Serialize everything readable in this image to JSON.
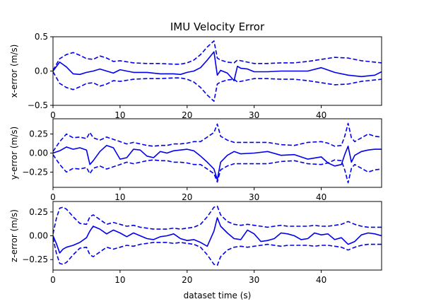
{
  "chart_data": [
    {
      "type": "line",
      "title": "IMU Velocity Error",
      "xlabel": "",
      "ylabel": "x-error (m/s)",
      "xlim": [
        0,
        49
      ],
      "ylim": [
        -0.5,
        0.5
      ],
      "xticks": [
        0,
        10,
        20,
        30,
        40
      ],
      "yticks": [
        -0.5,
        0.0,
        0.5
      ],
      "ytick_labels": [
        "−0.5",
        "0.0",
        "0.5"
      ],
      "color": "#0000ee",
      "series": [
        {
          "style": "solid",
          "x": [
            0,
            1,
            2,
            3,
            4,
            5,
            6,
            7,
            8,
            9,
            10,
            12,
            14,
            16,
            18,
            19,
            20,
            21,
            22,
            23,
            24,
            24.5,
            25,
            26,
            27,
            27.5,
            28,
            29,
            30,
            32,
            34,
            36,
            38,
            40,
            42,
            44,
            46,
            48,
            49
          ],
          "y": [
            0,
            0.13,
            0.06,
            -0.04,
            -0.05,
            -0.02,
            0.0,
            0.03,
            0.0,
            -0.03,
            0.02,
            -0.02,
            -0.02,
            -0.04,
            -0.04,
            -0.05,
            -0.02,
            0.0,
            0.05,
            0.16,
            0.28,
            -0.06,
            0.01,
            -0.03,
            -0.14,
            0.07,
            0.04,
            0.03,
            -0.01,
            -0.01,
            0.0,
            0.0,
            0.0,
            0.05,
            -0.02,
            -0.06,
            -0.08,
            -0.06,
            -0.01
          ]
        },
        {
          "style": "dashed",
          "x": [
            0,
            1,
            2,
            3,
            4,
            5,
            6,
            7,
            8,
            9,
            10,
            12,
            14,
            16,
            18,
            19,
            20,
            21,
            22,
            23,
            24,
            24.5,
            25,
            26,
            27,
            27.5,
            28,
            29,
            30,
            32,
            34,
            36,
            38,
            40,
            42,
            44,
            46,
            48,
            49
          ],
          "y": [
            0.01,
            0.18,
            0.24,
            0.27,
            0.23,
            0.18,
            0.17,
            0.22,
            0.19,
            0.14,
            0.15,
            0.12,
            0.11,
            0.11,
            0.1,
            0.1,
            0.12,
            0.16,
            0.24,
            0.35,
            0.44,
            0.19,
            0.16,
            0.13,
            0.12,
            0.16,
            0.15,
            0.13,
            0.11,
            0.11,
            0.12,
            0.12,
            0.14,
            0.17,
            0.2,
            0.19,
            0.15,
            0.13,
            0.12
          ]
        },
        {
          "style": "dashed",
          "x": [
            0,
            1,
            2,
            3,
            4,
            5,
            6,
            7,
            8,
            9,
            10,
            12,
            14,
            16,
            18,
            19,
            20,
            21,
            22,
            23,
            24,
            24.5,
            25,
            26,
            27,
            27.5,
            28,
            29,
            30,
            32,
            34,
            36,
            38,
            40,
            42,
            44,
            46,
            48,
            49
          ],
          "y": [
            -0.01,
            -0.18,
            -0.24,
            -0.27,
            -0.23,
            -0.18,
            -0.17,
            -0.22,
            -0.19,
            -0.14,
            -0.15,
            -0.12,
            -0.11,
            -0.11,
            -0.1,
            -0.1,
            -0.12,
            -0.16,
            -0.24,
            -0.35,
            -0.44,
            -0.19,
            -0.16,
            -0.13,
            -0.12,
            -0.16,
            -0.15,
            -0.13,
            -0.11,
            -0.11,
            -0.12,
            -0.12,
            -0.14,
            -0.17,
            -0.2,
            -0.19,
            -0.15,
            -0.13,
            -0.12
          ]
        }
      ]
    },
    {
      "type": "line",
      "title": "",
      "xlabel": "",
      "ylabel": "y-error (m/s)",
      "xlim": [
        0,
        49
      ],
      "ylim": [
        -0.45,
        0.45
      ],
      "xticks": [
        0,
        10,
        20,
        30,
        40
      ],
      "yticks": [
        -0.25,
        0.0,
        0.25
      ],
      "ytick_labels": [
        "−0.25",
        "0.00",
        "0.25"
      ],
      "color": "#0000ee",
      "series": [
        {
          "style": "solid",
          "x": [
            0,
            1,
            2,
            3,
            4,
            5,
            5.5,
            6,
            7,
            8,
            9,
            10,
            11,
            12,
            13,
            14,
            15,
            16,
            17,
            18,
            19,
            20,
            21,
            22,
            23,
            24,
            24.5,
            25,
            26,
            27,
            28,
            30,
            32,
            34,
            36,
            38,
            40,
            41,
            42,
            43,
            43.5,
            44,
            44.5,
            45,
            46,
            47,
            48,
            49
          ],
          "y": [
            0,
            0.03,
            0.08,
            0.05,
            0.07,
            0.04,
            -0.15,
            -0.1,
            0.02,
            0.1,
            0.07,
            -0.08,
            -0.06,
            0.05,
            0.04,
            -0.04,
            -0.06,
            0.02,
            0.0,
            0.03,
            0.04,
            0.05,
            0.03,
            -0.04,
            -0.12,
            -0.21,
            -0.35,
            -0.12,
            -0.03,
            0.02,
            -0.01,
            0.0,
            0.02,
            -0.03,
            -0.02,
            -0.08,
            -0.05,
            -0.13,
            -0.17,
            -0.15,
            -0.02,
            0.09,
            -0.12,
            -0.03,
            0.02,
            0.04,
            0.05,
            0.05
          ]
        },
        {
          "style": "dashed",
          "x": [
            0,
            1,
            2,
            3,
            4,
            5,
            5.5,
            6,
            7,
            8,
            9,
            10,
            11,
            12,
            13,
            14,
            15,
            16,
            17,
            18,
            19,
            20,
            21,
            22,
            23,
            24,
            24.5,
            25,
            26,
            27,
            28,
            30,
            32,
            34,
            36,
            38,
            40,
            41,
            42,
            43,
            43.5,
            44,
            44.5,
            45,
            46,
            47,
            48,
            49
          ],
          "y": [
            0.02,
            0.15,
            0.25,
            0.2,
            0.21,
            0.19,
            0.27,
            0.2,
            0.17,
            0.21,
            0.18,
            0.15,
            0.12,
            0.14,
            0.12,
            0.1,
            0.09,
            0.1,
            0.1,
            0.12,
            0.12,
            0.13,
            0.15,
            0.15,
            0.21,
            0.27,
            0.38,
            0.22,
            0.17,
            0.14,
            0.14,
            0.14,
            0.14,
            0.11,
            0.1,
            0.14,
            0.15,
            0.13,
            0.09,
            0.1,
            0.22,
            0.39,
            0.2,
            0.15,
            0.2,
            0.25,
            0.22,
            0.21
          ]
        },
        {
          "style": "dashed",
          "x": [
            0,
            1,
            2,
            3,
            4,
            5,
            5.5,
            6,
            7,
            8,
            9,
            10,
            11,
            12,
            13,
            14,
            15,
            16,
            17,
            18,
            19,
            20,
            21,
            22,
            23,
            24,
            24.5,
            25,
            26,
            27,
            28,
            30,
            32,
            34,
            36,
            38,
            40,
            41,
            42,
            43,
            43.5,
            44,
            44.5,
            45,
            46,
            47,
            48,
            49
          ],
          "y": [
            -0.02,
            -0.15,
            -0.25,
            -0.2,
            -0.21,
            -0.19,
            -0.27,
            -0.2,
            -0.17,
            -0.21,
            -0.18,
            -0.15,
            -0.12,
            -0.14,
            -0.12,
            -0.1,
            -0.09,
            -0.1,
            -0.1,
            -0.12,
            -0.12,
            -0.13,
            -0.15,
            -0.15,
            -0.21,
            -0.27,
            -0.38,
            -0.22,
            -0.17,
            -0.14,
            -0.14,
            -0.14,
            -0.14,
            -0.11,
            -0.1,
            -0.14,
            -0.15,
            -0.13,
            -0.09,
            -0.1,
            -0.22,
            -0.39,
            -0.2,
            -0.15,
            -0.2,
            -0.25,
            -0.22,
            -0.21
          ]
        }
      ]
    },
    {
      "type": "line",
      "title": "",
      "xlabel": "dataset time (s)",
      "ylabel": "z-error (m/s)",
      "xlim": [
        0,
        49
      ],
      "ylim": [
        -0.36,
        0.36
      ],
      "xticks": [
        0,
        10,
        20,
        30,
        40
      ],
      "yticks": [
        -0.25,
        0.0,
        0.25
      ],
      "ytick_labels": [
        "−0.25",
        "0.00",
        "0.25"
      ],
      "color": "#0000ee",
      "series": [
        {
          "style": "solid",
          "x": [
            0,
            0.5,
            1,
            1.5,
            2,
            3,
            4,
            5,
            5.5,
            6,
            7,
            8,
            9,
            10,
            11,
            12,
            13,
            14,
            15,
            16,
            17,
            18,
            19,
            20,
            21,
            22,
            23,
            24,
            24.5,
            25,
            26,
            27,
            28,
            29,
            30,
            31,
            32,
            33,
            34,
            35,
            36,
            37,
            38,
            39,
            40,
            41,
            42,
            43,
            44,
            45,
            46,
            47,
            48,
            49
          ],
          "y": [
            0,
            -0.08,
            -0.18,
            -0.14,
            -0.12,
            -0.1,
            -0.07,
            -0.02,
            0.05,
            0.1,
            0.07,
            0.02,
            0.06,
            0.03,
            -0.01,
            0.03,
            0.0,
            -0.03,
            -0.04,
            -0.01,
            0.0,
            0.02,
            -0.03,
            -0.05,
            -0.04,
            -0.07,
            -0.11,
            0.05,
            0.19,
            0.1,
            0.03,
            -0.03,
            -0.04,
            0.06,
            0.02,
            -0.06,
            -0.05,
            -0.03,
            0.03,
            0.02,
            0.0,
            -0.04,
            -0.03,
            0.03,
            0.01,
            0.02,
            -0.04,
            -0.02,
            -0.09,
            -0.06,
            0.01,
            0.03,
            0.02,
            0.0
          ]
        },
        {
          "style": "dashed",
          "x": [
            0,
            0.5,
            1,
            1.5,
            2,
            3,
            4,
            5,
            5.5,
            6,
            7,
            8,
            9,
            10,
            11,
            12,
            13,
            14,
            15,
            16,
            17,
            18,
            19,
            20,
            21,
            22,
            23,
            24,
            24.5,
            25,
            26,
            27,
            28,
            29,
            30,
            31,
            32,
            33,
            34,
            35,
            36,
            37,
            38,
            39,
            40,
            41,
            42,
            43,
            44,
            45,
            46,
            47,
            48,
            49
          ],
          "y": [
            0.02,
            0.18,
            0.29,
            0.3,
            0.28,
            0.2,
            0.13,
            0.12,
            0.2,
            0.22,
            0.17,
            0.12,
            0.14,
            0.12,
            0.1,
            0.11,
            0.09,
            0.08,
            0.07,
            0.07,
            0.07,
            0.08,
            0.07,
            0.08,
            0.09,
            0.12,
            0.2,
            0.3,
            0.31,
            0.22,
            0.15,
            0.12,
            0.11,
            0.12,
            0.11,
            0.1,
            0.09,
            0.1,
            0.11,
            0.1,
            0.1,
            0.1,
            0.1,
            0.11,
            0.1,
            0.1,
            0.11,
            0.12,
            0.15,
            0.12,
            0.1,
            0.09,
            0.09,
            0.09
          ]
        },
        {
          "style": "dashed",
          "x": [
            0,
            0.5,
            1,
            1.5,
            2,
            3,
            4,
            5,
            5.5,
            6,
            7,
            8,
            9,
            10,
            11,
            12,
            13,
            14,
            15,
            16,
            17,
            18,
            19,
            20,
            21,
            22,
            23,
            24,
            24.5,
            25,
            26,
            27,
            28,
            29,
            30,
            31,
            32,
            33,
            34,
            35,
            36,
            37,
            38,
            39,
            40,
            41,
            42,
            43,
            44,
            45,
            46,
            47,
            48,
            49
          ],
          "y": [
            -0.02,
            -0.18,
            -0.29,
            -0.3,
            -0.28,
            -0.2,
            -0.13,
            -0.12,
            -0.2,
            -0.22,
            -0.17,
            -0.12,
            -0.14,
            -0.12,
            -0.1,
            -0.11,
            -0.09,
            -0.08,
            -0.07,
            -0.07,
            -0.07,
            -0.08,
            -0.07,
            -0.08,
            -0.09,
            -0.12,
            -0.2,
            -0.3,
            -0.31,
            -0.22,
            -0.15,
            -0.12,
            -0.11,
            -0.12,
            -0.11,
            -0.1,
            -0.09,
            -0.1,
            -0.11,
            -0.1,
            -0.1,
            -0.1,
            -0.1,
            -0.11,
            -0.1,
            -0.1,
            -0.11,
            -0.12,
            -0.15,
            -0.12,
            -0.1,
            -0.09,
            -0.09,
            -0.09
          ]
        }
      ]
    }
  ]
}
